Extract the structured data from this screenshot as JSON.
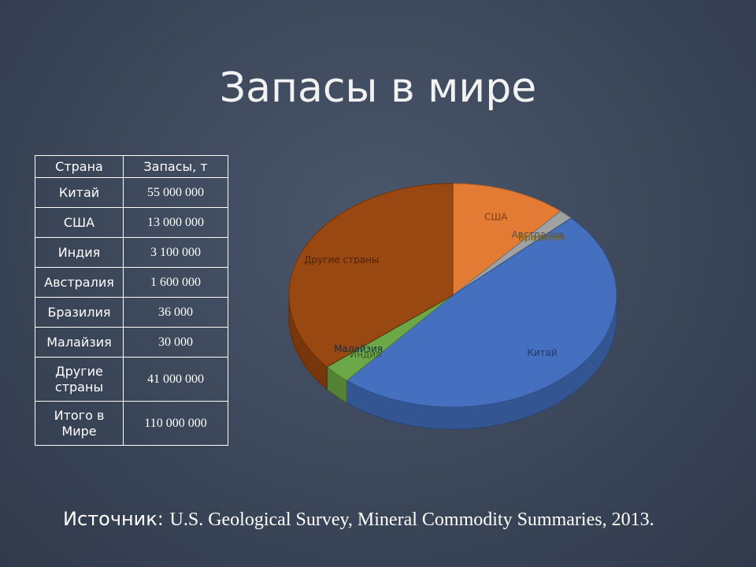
{
  "title": "Запасы в мире",
  "table": {
    "header": [
      "Страна",
      "Запасы, т"
    ],
    "rows": [
      [
        "Китай",
        "55 000 000"
      ],
      [
        "США",
        "13 000 000"
      ],
      [
        "Индия",
        "3 100 000"
      ],
      [
        "Австралия",
        "1 600 000"
      ],
      [
        "Бразилия",
        "36 000"
      ],
      [
        "Малайзия",
        "30 000"
      ],
      [
        "Другие страны",
        "41 000 000"
      ],
      [
        "Итого в Мире",
        "110 000 000"
      ]
    ]
  },
  "chart_data": {
    "type": "pie",
    "categories": [
      "США",
      "Австралия",
      "Бразилия",
      "Китай",
      "Индия",
      "Малайзия",
      "Другие страны"
    ],
    "values": [
      13000000,
      1600000,
      36000,
      55000000,
      3100000,
      30000,
      41000000
    ],
    "colors": [
      "#ed7d31",
      "#a5a5a5",
      "#ffc000",
      "#4472c4",
      "#70ad47",
      "#255e91",
      "#9e480e"
    ]
  },
  "source": {
    "label": "Источник:",
    "text": "U.S. Geological Survey, Mineral Commodity Summaries, 2013."
  }
}
